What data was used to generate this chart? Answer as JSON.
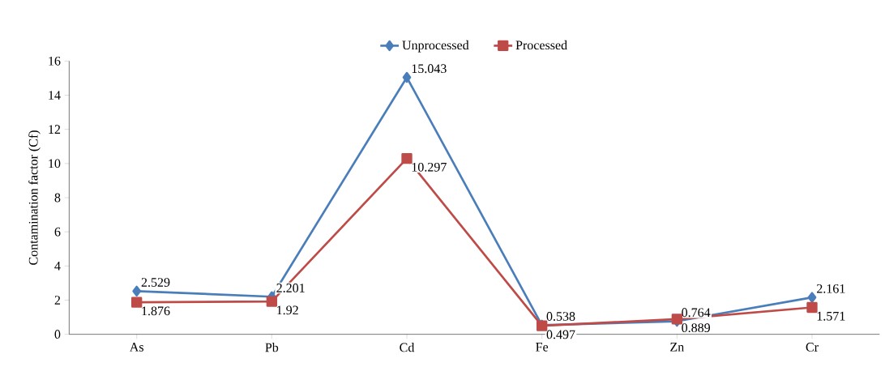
{
  "chart_data": {
    "type": "line",
    "ylabel": "Contamination factor (Cf)",
    "categories": [
      "As",
      "Pb",
      "Cd",
      "Fe",
      "Zn",
      "Cr"
    ],
    "series": [
      {
        "name": "Unprocessed",
        "color": "#4a7ebb",
        "marker": "diamond",
        "values": [
          2.529,
          2.201,
          15.043,
          0.538,
          0.764,
          2.161
        ]
      },
      {
        "name": "Processed",
        "color": "#be4b48",
        "marker": "square",
        "values": [
          1.876,
          1.92,
          10.297,
          0.497,
          0.889,
          1.571
        ]
      }
    ],
    "ylim": [
      0,
      16
    ],
    "yticks": [
      0,
      2,
      4,
      6,
      8,
      10,
      12,
      14,
      16
    ],
    "legend": "top",
    "data_labels": true,
    "line_style": "solid"
  }
}
